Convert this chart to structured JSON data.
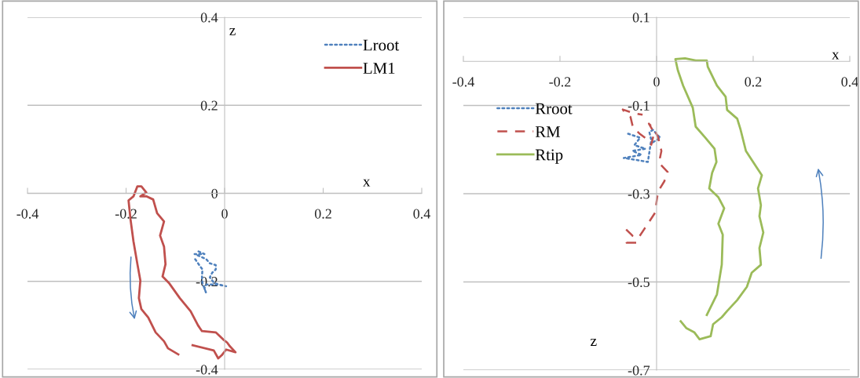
{
  "chart_data": [
    {
      "type": "line",
      "xlabel": "x",
      "ylabel": "z",
      "xlim": [
        -0.4,
        0.4
      ],
      "xticks": [
        -0.4,
        -0.2,
        0,
        0.2,
        0.4
      ],
      "ylim": [
        -0.4,
        0.4
      ],
      "yticks": [
        -0.4,
        -0.2,
        0,
        0.2,
        0.4
      ],
      "grid": "y",
      "legend": "top right",
      "series": [
        {
          "name": "Lroot",
          "color": "#4f81bd",
          "line_style": "dotted",
          "x": [
            -0.053,
            -0.041,
            -0.061,
            -0.046,
            -0.037,
            -0.03,
            -0.018,
            -0.018,
            -0.025,
            -0.03,
            -0.021,
            -0.005,
            0.003,
            -0.014,
            -0.037,
            -0.041,
            -0.038,
            -0.045,
            -0.046,
            -0.045,
            -0.054,
            -0.062
          ],
          "values": [
            -0.132,
            -0.138,
            -0.138,
            -0.145,
            -0.15,
            -0.159,
            -0.163,
            -0.173,
            -0.18,
            -0.191,
            -0.204,
            -0.209,
            -0.211,
            -0.207,
            -0.207,
            -0.216,
            -0.225,
            -0.204,
            -0.189,
            -0.173,
            -0.159,
            -0.146
          ]
        },
        {
          "name": "LM1",
          "color": "#c0504d",
          "line_style": "solid",
          "x": [
            -0.094,
            -0.115,
            -0.123,
            -0.14,
            -0.155,
            -0.169,
            -0.174,
            -0.171,
            -0.177,
            -0.185,
            -0.191,
            -0.195,
            -0.185,
            -0.177,
            -0.169,
            -0.159,
            -0.171,
            -0.158,
            -0.145,
            -0.137,
            -0.123,
            -0.131,
            -0.123,
            -0.12,
            -0.126,
            -0.112,
            -0.091,
            -0.069,
            -0.054,
            -0.046,
            -0.018,
            -0.003,
            0.005,
            0.011,
            0.022,
            0.003,
            -0.006,
            -0.013,
            -0.022,
            -0.065
          ],
          "values": [
            -0.366,
            -0.352,
            -0.336,
            -0.316,
            -0.282,
            -0.263,
            -0.238,
            -0.198,
            -0.161,
            -0.109,
            -0.059,
            -0.016,
            -0.007,
            0.016,
            0.016,
            0.002,
            -0.007,
            -0.007,
            -0.014,
            -0.045,
            -0.064,
            -0.096,
            -0.121,
            -0.161,
            -0.189,
            -0.205,
            -0.238,
            -0.268,
            -0.3,
            -0.313,
            -0.316,
            -0.332,
            -0.339,
            -0.348,
            -0.361,
            -0.355,
            -0.368,
            -0.375,
            -0.357,
            -0.345
          ]
        }
      ]
    },
    {
      "type": "line",
      "xlabel": "x",
      "ylabel": "z",
      "xlim": [
        -0.4,
        0.4
      ],
      "xticks": [
        -0.4,
        -0.2,
        0,
        0.2,
        0.4
      ],
      "ylim": [
        -0.7,
        0.1
      ],
      "yticks": [
        -0.7,
        -0.5,
        -0.3,
        -0.1,
        0.1
      ],
      "grid": "y",
      "legend": "left",
      "series": [
        {
          "name": "Rroot",
          "color": "#4f81bd",
          "line_style": "dotted",
          "x": [
            -0.059,
            -0.034,
            -0.046,
            -0.023,
            -0.05,
            -0.031,
            -0.068,
            -0.039,
            -0.018,
            -0.011,
            -0.015,
            -0.007,
            0.0,
            0.008,
            -0.01
          ],
          "values": [
            -0.164,
            -0.173,
            -0.19,
            -0.198,
            -0.203,
            -0.212,
            -0.219,
            -0.224,
            -0.228,
            -0.178,
            -0.16,
            -0.155,
            -0.165,
            -0.173,
            -0.185
          ]
        },
        {
          "name": "RM",
          "color": "#c0504d",
          "line_style": "dashed",
          "x": [
            -0.063,
            -0.05,
            -0.062,
            -0.042,
            -0.037,
            -0.026,
            -0.015,
            -0.003,
            0.0,
            0.003,
            0.016,
            0.023,
            0.005,
            0.01,
            0.003,
            -0.007,
            -0.016,
            -0.005,
            -0.011,
            -0.02,
            -0.034,
            -0.049,
            -0.054,
            -0.067,
            -0.07,
            -0.049,
            -0.029
          ],
          "values": [
            -0.381,
            -0.395,
            -0.411,
            -0.411,
            -0.399,
            -0.381,
            -0.363,
            -0.343,
            -0.318,
            -0.295,
            -0.272,
            -0.251,
            -0.23,
            -0.203,
            -0.171,
            -0.151,
            -0.141,
            -0.162,
            -0.189,
            -0.176,
            -0.165,
            -0.149,
            -0.126,
            -0.114,
            -0.109,
            -0.117,
            -0.121
          ]
        },
        {
          "name": "Rtip",
          "color": "#9bbb59",
          "line_style": "solid",
          "x": [
            0.104,
            0.125,
            0.135,
            0.137,
            0.128,
            0.14,
            0.128,
            0.109,
            0.115,
            0.124,
            0.12,
            0.101,
            0.081,
            0.075,
            0.055,
            0.044,
            0.039,
            0.059,
            0.081,
            0.104,
            0.106,
            0.125,
            0.143,
            0.146,
            0.167,
            0.174,
            0.185,
            0.207,
            0.218,
            0.21,
            0.216,
            0.213,
            0.221,
            0.213,
            0.216,
            0.197,
            0.187,
            0.167,
            0.146,
            0.135,
            0.117,
            0.112,
            0.089,
            0.078,
            0.062,
            0.05
          ],
          "values": [
            -0.575,
            -0.528,
            -0.461,
            -0.393,
            -0.368,
            -0.333,
            -0.308,
            -0.288,
            -0.253,
            -0.228,
            -0.198,
            -0.173,
            -0.148,
            -0.105,
            -0.055,
            -0.02,
            0.005,
            0.007,
            0.002,
            0.002,
            -0.012,
            -0.055,
            -0.08,
            -0.11,
            -0.13,
            -0.155,
            -0.203,
            -0.24,
            -0.258,
            -0.288,
            -0.326,
            -0.351,
            -0.388,
            -0.423,
            -0.461,
            -0.479,
            -0.511,
            -0.541,
            -0.566,
            -0.58,
            -0.596,
            -0.623,
            -0.63,
            -0.614,
            -0.605,
            -0.589
          ]
        }
      ]
    }
  ]
}
